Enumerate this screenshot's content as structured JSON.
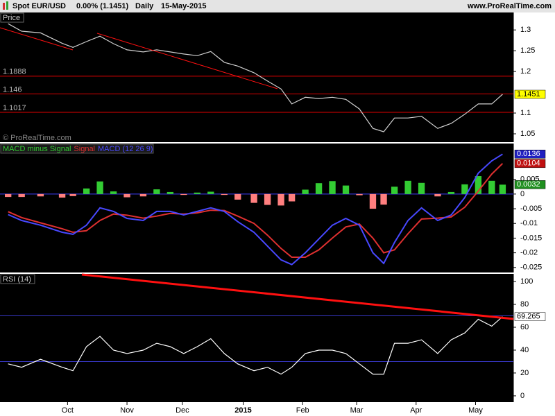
{
  "header": {
    "symbol": "Spot EUR/USD",
    "change": "0.00% (1.1451)",
    "period": "Daily",
    "date": "15-May-2015",
    "site": "www.ProRealTime.com"
  },
  "chart_data": [
    {
      "type": "line",
      "title": "Price",
      "watermark": "© ProRealTime.com",
      "x": [
        3,
        8,
        15,
        23,
        27,
        32,
        37,
        42,
        47,
        53,
        58,
        63,
        68,
        73,
        78,
        83,
        88,
        94,
        99,
        104,
        108,
        113,
        118,
        123,
        128,
        133,
        138,
        142,
        146,
        151,
        156,
        162,
        167,
        172,
        177,
        182,
        186
      ],
      "xlim": [
        0,
        190
      ],
      "ylim": [
        1.03,
        1.342
      ],
      "yticks": [
        1.3,
        1.25,
        1.2,
        1.1,
        1.05
      ],
      "hlines": [
        1.1888,
        1.146,
        1.1017
      ],
      "hline_color": "#e00000",
      "label_hlines": true,
      "series": [
        {
          "color": "#cfcfcf",
          "label_color": "#ffff00",
          "label_text_color": "#000000",
          "values": [
            1.315,
            1.297,
            1.293,
            1.268,
            1.258,
            1.272,
            1.285,
            1.267,
            1.252,
            1.247,
            1.252,
            1.247,
            1.242,
            1.238,
            1.248,
            1.222,
            1.213,
            1.197,
            1.177,
            1.158,
            1.122,
            1.138,
            1.135,
            1.138,
            1.133,
            1.11,
            1.063,
            1.055,
            1.088,
            1.088,
            1.092,
            1.063,
            1.075,
            1.097,
            1.122,
            1.122,
            1.1451
          ]
        }
      ]
    },
    {
      "type": "macd",
      "x": [
        3,
        8,
        15,
        23,
        27,
        32,
        37,
        42,
        47,
        53,
        58,
        63,
        68,
        73,
        78,
        83,
        88,
        94,
        99,
        104,
        108,
        113,
        118,
        123,
        128,
        133,
        138,
        142,
        146,
        151,
        156,
        162,
        167,
        172,
        177,
        182,
        186
      ],
      "xlim": [
        0,
        190
      ],
      "ylim": [
        -0.0267,
        0.0172
      ],
      "yticks": [
        0.005,
        0,
        -0.005,
        -0.01,
        -0.015,
        -0.02,
        -0.025
      ],
      "hlines": [
        0
      ],
      "hline_color": "#4040ff",
      "label_hlines": false,
      "series": [
        {
          "name": "MACD minus Signal",
          "style": "histogram",
          "color": "#33cc33",
          "negative_color": "#ff7f7f",
          "label_color": "#1f8f1f",
          "label_text_color": "#ffffff",
          "values": [
            -0.001,
            -0.001,
            -0.0008,
            -0.0012,
            -0.0007,
            0.0019,
            0.0043,
            0.0009,
            -0.0011,
            -0.0008,
            0.0016,
            0.0007,
            -0.0003,
            0.0005,
            0.0008,
            -0.0003,
            -0.0019,
            -0.003,
            -0.0037,
            -0.0039,
            -0.0025,
            0.0015,
            0.0037,
            0.0044,
            0.0029,
            -0.0004,
            -0.005,
            -0.0036,
            0.0025,
            0.0045,
            0.0038,
            -0.0008,
            0.0007,
            0.0033,
            0.0061,
            0.0045,
            0.0032
          ]
        },
        {
          "name": "Signal",
          "style": "line",
          "color": "#e03030",
          "label_color": "#c01010",
          "label_text_color": "#ffffff",
          "values": [
            -0.006,
            -0.008,
            -0.0098,
            -0.0118,
            -0.013,
            -0.0125,
            -0.009,
            -0.0068,
            -0.0072,
            -0.0082,
            -0.0075,
            -0.0066,
            -0.0068,
            -0.0064,
            -0.0055,
            -0.0056,
            -0.0075,
            -0.01,
            -0.014,
            -0.0185,
            -0.0215,
            -0.0215,
            -0.019,
            -0.015,
            -0.0112,
            -0.0102,
            -0.015,
            -0.02,
            -0.019,
            -0.0135,
            -0.0085,
            -0.0082,
            -0.0078,
            -0.0045,
            0.001,
            0.0068,
            0.0104
          ]
        },
        {
          "name": "MACD (12 26 9)",
          "style": "line",
          "color": "#4848ff",
          "label_color": "#2020c0",
          "label_text_color": "#ffffff",
          "values": [
            -0.007,
            -0.009,
            -0.0106,
            -0.013,
            -0.0137,
            -0.0106,
            -0.0047,
            -0.0059,
            -0.0083,
            -0.009,
            -0.0059,
            -0.0059,
            -0.0071,
            -0.0059,
            -0.0047,
            -0.0059,
            -0.0094,
            -0.013,
            -0.0177,
            -0.0224,
            -0.024,
            -0.02,
            -0.0153,
            -0.0106,
            -0.0083,
            -0.0106,
            -0.02,
            -0.0236,
            -0.0165,
            -0.009,
            -0.0047,
            -0.009,
            -0.0071,
            -0.0012,
            0.0071,
            0.0113,
            0.0136
          ]
        }
      ]
    },
    {
      "type": "line",
      "title": "RSI (14)",
      "x": [
        3,
        8,
        15,
        23,
        27,
        32,
        37,
        42,
        47,
        53,
        58,
        63,
        68,
        73,
        78,
        83,
        88,
        94,
        99,
        104,
        108,
        113,
        118,
        123,
        128,
        133,
        138,
        142,
        146,
        151,
        156,
        162,
        167,
        172,
        177,
        182,
        186
      ],
      "xlim": [
        0,
        190
      ],
      "ylim": [
        -5.5,
        106.7
      ],
      "yticks": [
        0,
        20,
        40,
        60,
        80,
        100
      ],
      "xticks": [
        {
          "value": 25,
          "label": "Oct"
        },
        {
          "value": 47,
          "label": "Nov"
        },
        {
          "value": 67.5,
          "label": "Dec"
        },
        {
          "value": 90,
          "label": "2015"
        },
        {
          "value": 112,
          "label": "Feb"
        },
        {
          "value": 132,
          "label": "Mar"
        },
        {
          "value": 154,
          "label": "Apr"
        },
        {
          "value": 176,
          "label": "May"
        }
      ],
      "hlines": [
        70,
        30
      ],
      "hline_color": "#3838c8",
      "label_hlines": false,
      "series": [
        {
          "color": "#ffffff",
          "label_color": "#ffffff",
          "label_text_color": "#000000",
          "values": [
            28,
            25,
            32,
            25,
            22,
            43,
            52,
            40,
            37,
            40,
            46,
            43,
            37,
            43,
            50,
            37,
            28,
            22,
            25,
            19,
            25,
            37,
            40,
            40,
            37,
            28,
            19,
            19,
            46,
            46,
            49,
            37,
            49,
            55,
            67,
            61,
            69.265
          ]
        }
      ]
    }
  ]
}
